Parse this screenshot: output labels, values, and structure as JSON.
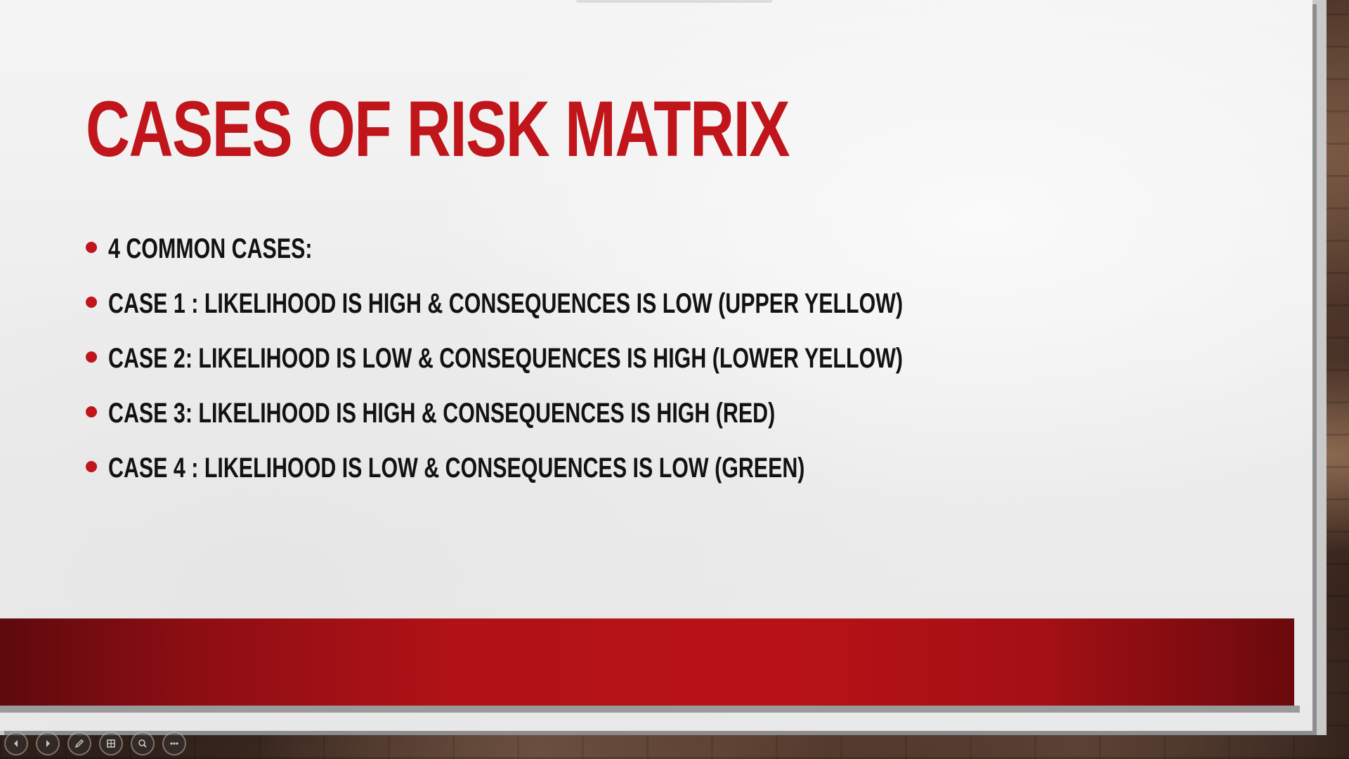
{
  "slide": {
    "title": "Cases of Risk Matrix",
    "bullets": [
      "4 common cases:",
      "Case 1 : Likelihood is high & consequences is low (upper yellow)",
      "Case 2: Likelihood is low & consequences is high (lower yellow)",
      "Case 3: Likelihood is high & consequences is high (red)",
      "Case 4 : Likelihood is low & consequences is low (green)"
    ]
  },
  "colors": {
    "title": "#c0151b",
    "bullet_dot": "#c0151b",
    "footer_band": "#b81217",
    "text": "#121212"
  },
  "controls": [
    {
      "icon": "previous-slide-icon"
    },
    {
      "icon": "next-slide-icon"
    },
    {
      "icon": "pen-icon"
    },
    {
      "icon": "slide-grid-icon"
    },
    {
      "icon": "zoom-icon"
    },
    {
      "icon": "more-options-icon"
    }
  ]
}
